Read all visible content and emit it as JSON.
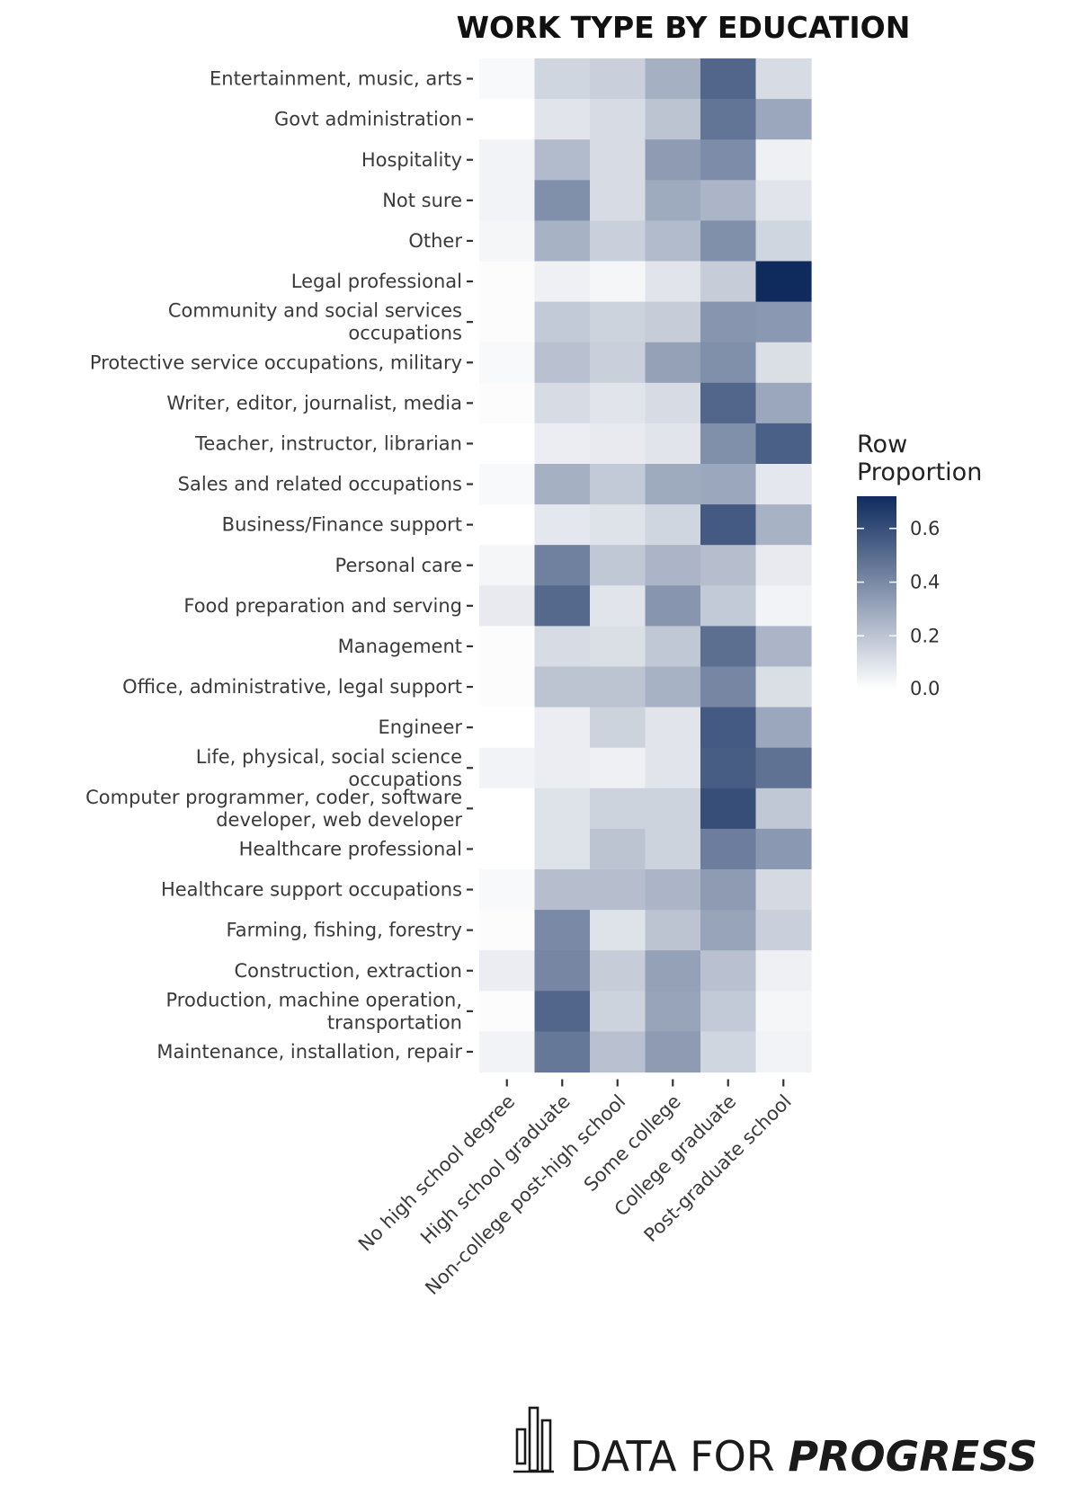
{
  "chart_data": {
    "type": "heatmap",
    "title": "WORK TYPE BY EDUCATION",
    "xlabel": "",
    "ylabel": "",
    "legend": {
      "title_lines": [
        "Row",
        "Proportion"
      ],
      "range": [
        0,
        0.72
      ],
      "ticks": [
        0.0,
        0.2,
        0.4,
        0.6
      ],
      "tick_labels": [
        "0.0",
        "0.2",
        "0.4",
        "0.6"
      ],
      "color_low": "#ffffff",
      "color_high": "#0f2b5e",
      "placement": "right"
    },
    "columns": [
      "No high school degree",
      "High school graduate",
      "Non-college post-high school",
      "Some college",
      "College graduate",
      "Post-graduate school"
    ],
    "rows": [
      {
        "label": [
          "Entertainment, music, arts"
        ],
        "values": [
          0.02,
          0.14,
          0.16,
          0.27,
          0.52,
          0.12
        ]
      },
      {
        "label": [
          "Govt administration"
        ],
        "values": [
          0.0,
          0.09,
          0.12,
          0.2,
          0.47,
          0.3
        ]
      },
      {
        "label": [
          "Hospitality"
        ],
        "values": [
          0.04,
          0.23,
          0.12,
          0.34,
          0.39,
          0.05
        ]
      },
      {
        "label": [
          "Not sure"
        ],
        "values": [
          0.04,
          0.38,
          0.12,
          0.29,
          0.25,
          0.09
        ]
      },
      {
        "label": [
          "Other"
        ],
        "values": [
          0.03,
          0.26,
          0.16,
          0.23,
          0.38,
          0.14
        ]
      },
      {
        "label": [
          "Legal professional"
        ],
        "values": [
          0.01,
          0.05,
          0.03,
          0.09,
          0.17,
          0.72
        ]
      },
      {
        "label": [
          "Community and social services",
          "occupations"
        ],
        "values": [
          0.01,
          0.18,
          0.15,
          0.17,
          0.36,
          0.35
        ]
      },
      {
        "label": [
          "Protective service occupations, military"
        ],
        "values": [
          0.02,
          0.21,
          0.16,
          0.32,
          0.38,
          0.11
        ]
      },
      {
        "label": [
          "Writer, editor, journalist, media"
        ],
        "values": [
          0.01,
          0.12,
          0.09,
          0.12,
          0.52,
          0.3
        ]
      },
      {
        "label": [
          "Teacher, instructor, librarian"
        ],
        "values": [
          0.0,
          0.06,
          0.07,
          0.09,
          0.38,
          0.54
        ]
      },
      {
        "label": [
          "Sales and related occupations"
        ],
        "values": [
          0.02,
          0.27,
          0.18,
          0.29,
          0.3,
          0.08
        ]
      },
      {
        "label": [
          "Business/Finance support"
        ],
        "values": [
          0.0,
          0.08,
          0.1,
          0.14,
          0.56,
          0.26
        ]
      },
      {
        "label": [
          "Personal care"
        ],
        "values": [
          0.03,
          0.43,
          0.19,
          0.25,
          0.22,
          0.07
        ]
      },
      {
        "label": [
          "Food preparation and serving"
        ],
        "values": [
          0.07,
          0.51,
          0.09,
          0.36,
          0.18,
          0.04
        ]
      },
      {
        "label": [
          "Management"
        ],
        "values": [
          0.01,
          0.12,
          0.11,
          0.19,
          0.49,
          0.25
        ]
      },
      {
        "label": [
          "Office, administrative, legal support"
        ],
        "values": [
          0.01,
          0.2,
          0.2,
          0.26,
          0.41,
          0.11
        ]
      },
      {
        "label": [
          "Engineer"
        ],
        "values": [
          0.0,
          0.06,
          0.15,
          0.09,
          0.56,
          0.3
        ]
      },
      {
        "label": [
          "Life, physical, social science",
          "occupations"
        ],
        "values": [
          0.04,
          0.06,
          0.05,
          0.09,
          0.55,
          0.48
        ]
      },
      {
        "label": [
          "Computer programmer, coder, software",
          "developer, web developer"
        ],
        "values": [
          0.0,
          0.1,
          0.15,
          0.15,
          0.6,
          0.19
        ]
      },
      {
        "label": [
          "Healthcare professional"
        ],
        "values": [
          0.0,
          0.1,
          0.2,
          0.15,
          0.44,
          0.35
        ]
      },
      {
        "label": [
          "Healthcare support occupations"
        ],
        "values": [
          0.02,
          0.22,
          0.22,
          0.25,
          0.34,
          0.13
        ]
      },
      {
        "label": [
          "Farming, fishing, forestry"
        ],
        "values": [
          0.01,
          0.4,
          0.1,
          0.2,
          0.31,
          0.16
        ]
      },
      {
        "label": [
          "Construction, extraction"
        ],
        "values": [
          0.06,
          0.41,
          0.17,
          0.32,
          0.21,
          0.05
        ]
      },
      {
        "label": [
          "Production, machine operation,",
          "transportation"
        ],
        "values": [
          0.01,
          0.52,
          0.15,
          0.31,
          0.18,
          0.03
        ]
      },
      {
        "label": [
          "Maintenance, installation, repair"
        ],
        "values": [
          0.04,
          0.46,
          0.21,
          0.34,
          0.14,
          0.04
        ]
      }
    ]
  },
  "branding": {
    "text_plain": "DATA FOR ",
    "text_bold": "PROGRESS",
    "icon": "bar-chart-logo-icon"
  }
}
